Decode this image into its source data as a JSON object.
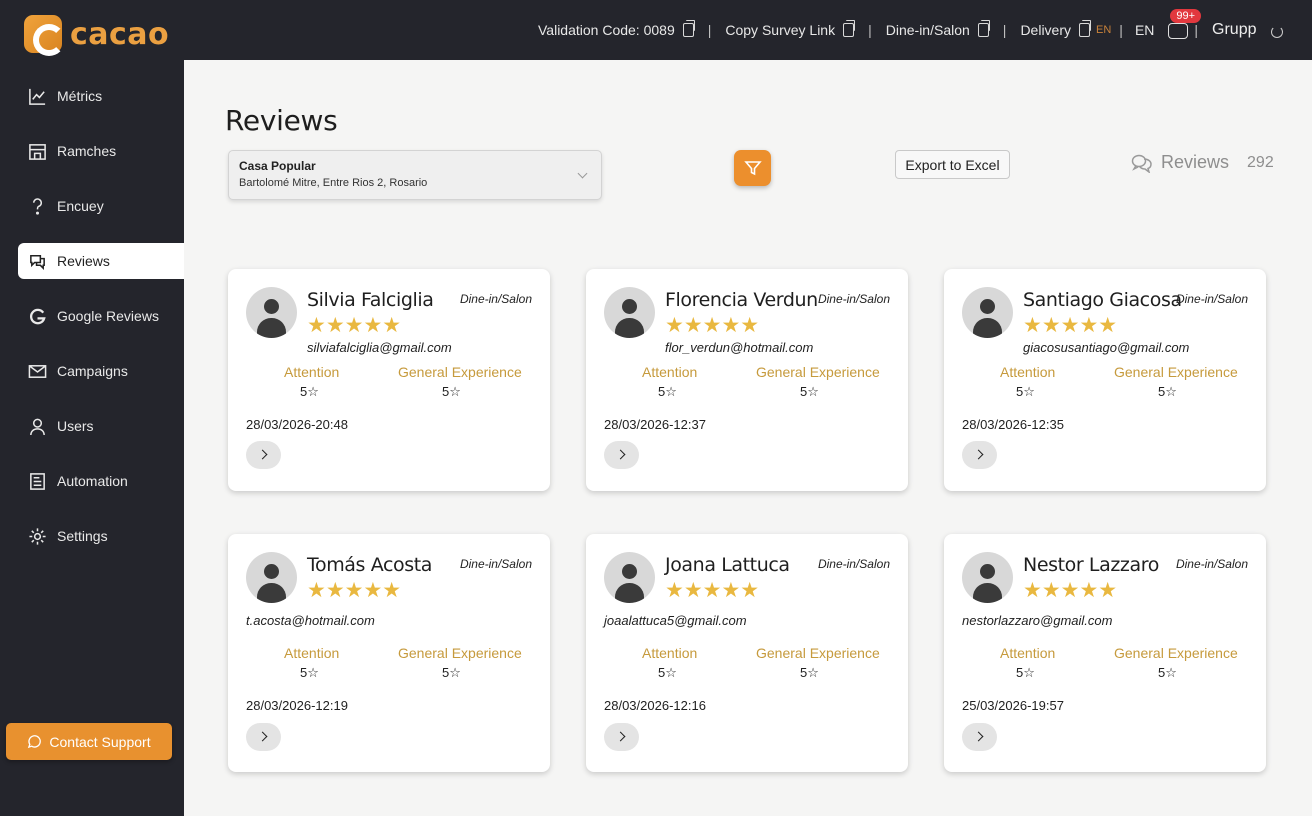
{
  "app": {
    "logo_text": "cacao"
  },
  "topbar": {
    "validation_code": "Validation Code: 0089",
    "copy_survey": "Copy Survey Link",
    "dine_in": "Dine-in/Salon",
    "delivery": "Delivery",
    "lang_active": "EN",
    "lang": "EN",
    "notif_badge": "99+",
    "user": "Grupp"
  },
  "sidebar": {
    "items": [
      {
        "label": "Métrics",
        "icon": "chart-line-icon"
      },
      {
        "label": "Ramches",
        "icon": "store-icon"
      },
      {
        "label": "Encuey",
        "icon": "question-icon"
      },
      {
        "label": "Reviews",
        "icon": "chat-bubbles-icon",
        "active": true
      },
      {
        "label": "Google Reviews",
        "icon": "google-icon"
      },
      {
        "label": "Campaigns",
        "icon": "envelope-icon"
      },
      {
        "label": "Users",
        "icon": "user-icon"
      },
      {
        "label": "Automation",
        "icon": "automation-icon"
      },
      {
        "label": "Settings",
        "icon": "gear-icon"
      }
    ],
    "support_label": "Contact Support"
  },
  "main": {
    "title": "Reviews",
    "store": {
      "name": "Casa Popular",
      "address": "Bartolomé Mitre, Entre Rios 2, Rosario"
    },
    "export_label": "Export to Excel",
    "reviews_label": "Reviews",
    "reviews_count": "292",
    "attention_label": "Attention",
    "general_label": "General Experience"
  },
  "reviews": [
    {
      "name": "Silvia Falciglia",
      "channel": "Dine-in/Salon",
      "stars": "★★★★★",
      "email": "silviafalciglia@gmail.com",
      "attention": "5☆",
      "general": "5☆",
      "date": "28/03/2026-20:48"
    },
    {
      "name": "Florencia Verdun",
      "channel": "Dine-in/Salon",
      "stars": "★★★★★",
      "email": "flor_verdun@hotmail.com",
      "attention": "5☆",
      "general": "5☆",
      "date": "28/03/2026-12:37"
    },
    {
      "name": "Santiago Giacosa",
      "channel": "Dine-in/Salon",
      "stars": "★★★★★",
      "email": "giacosusantiago@gmail.com",
      "attention": "5☆",
      "general": "5☆",
      "date": "28/03/2026-12:35"
    },
    {
      "name": "Tomás Acosta",
      "channel": "Dine-in/Salon",
      "stars": "★★★★★",
      "email": "t.acosta@hotmail.com",
      "attention": "5☆",
      "general": "5☆",
      "date": "28/03/2026-12:19"
    },
    {
      "name": "Joana Lattuca",
      "channel": "Dine-in/Salon",
      "stars": "★★★★★",
      "email": "joaalattuca5@gmail.com",
      "attention": "5☆",
      "general": "5☆",
      "date": "28/03/2026-12:16"
    },
    {
      "name": "Nestor Lazzaro",
      "channel": "Dine-in/Salon",
      "stars": "★★★★★",
      "email": "nestorlazzaro@gmail.com",
      "attention": "5☆",
      "general": "5☆",
      "date": "25/03/2026-19:57"
    }
  ],
  "colors": {
    "sidebar": "#24252c",
    "accent": "#e8912f",
    "star": "#e9b840",
    "label_gold": "#c69a3c"
  }
}
